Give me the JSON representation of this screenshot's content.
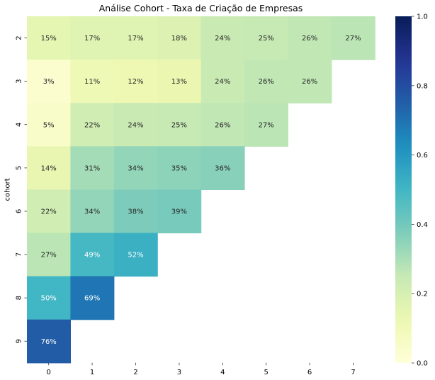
{
  "chart_data": {
    "type": "heatmap",
    "title": "Análise Cohort - Taxa de Criação de Empresas",
    "xlabel": "",
    "ylabel": "cohort",
    "x_categories": [
      "0",
      "1",
      "2",
      "3",
      "4",
      "5",
      "6",
      "7"
    ],
    "y_categories": [
      "2",
      "3",
      "4",
      "5",
      "6",
      "7",
      "8",
      "9"
    ],
    "values": [
      [
        0.15,
        0.17,
        0.17,
        0.18,
        0.24,
        0.25,
        0.26,
        0.27
      ],
      [
        0.03,
        0.11,
        0.12,
        0.13,
        0.24,
        0.26,
        0.26,
        null
      ],
      [
        0.05,
        0.22,
        0.24,
        0.25,
        0.26,
        0.27,
        null,
        null
      ],
      [
        0.14,
        0.31,
        0.34,
        0.35,
        0.36,
        null,
        null,
        null
      ],
      [
        0.22,
        0.34,
        0.38,
        0.39,
        null,
        null,
        null,
        null
      ],
      [
        0.27,
        0.49,
        0.52,
        null,
        null,
        null,
        null,
        null
      ],
      [
        0.5,
        0.69,
        null,
        null,
        null,
        null,
        null,
        null
      ],
      [
        0.76,
        null,
        null,
        null,
        null,
        null,
        null,
        null
      ]
    ],
    "cell_labels": [
      [
        "15%",
        "17%",
        "17%",
        "18%",
        "24%",
        "25%",
        "26%",
        "27%"
      ],
      [
        "3%",
        "11%",
        "12%",
        "13%",
        "24%",
        "26%",
        "26%",
        null
      ],
      [
        "5%",
        "22%",
        "24%",
        "25%",
        "26%",
        "27%",
        null,
        null
      ],
      [
        "14%",
        "31%",
        "34%",
        "35%",
        "36%",
        null,
        null,
        null
      ],
      [
        "22%",
        "34%",
        "38%",
        "39%",
        null,
        null,
        null,
        null
      ],
      [
        "27%",
        "49%",
        "52%",
        null,
        null,
        null,
        null,
        null
      ],
      [
        "50%",
        "69%",
        null,
        null,
        null,
        null,
        null,
        null
      ],
      [
        "76%",
        null,
        null,
        null,
        null,
        null,
        null,
        null
      ]
    ],
    "colorscale": "YlGnBu",
    "vmin": 0.0,
    "vmax": 1.0,
    "colorbar_ticks": [
      "0.0",
      "0.2",
      "0.4",
      "0.6",
      "0.8",
      "1.0"
    ],
    "colorbar_tick_values": [
      0.0,
      0.2,
      0.4,
      0.6,
      0.8,
      1.0
    ]
  }
}
